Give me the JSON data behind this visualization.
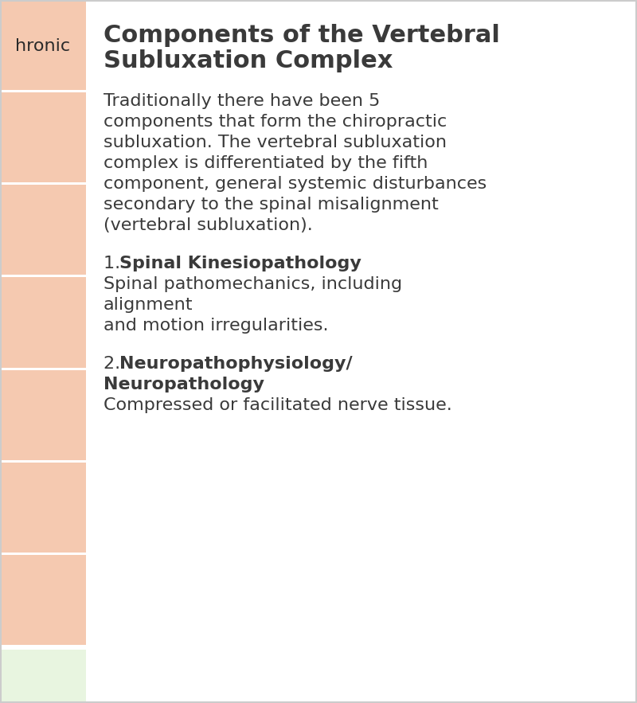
{
  "title_line1": "Components of the Vertebral",
  "title_line2": "Subluxation Complex",
  "background_color": "#ffffff",
  "sidebar_color": "#f5c9b0",
  "sidebar_bottom_color": "#e8f5e0",
  "border_color": "#cccccc",
  "text_color": "#3a3a3a",
  "sidebar_text": "hronic",
  "sidebar_text_color": "#2a2a2a",
  "sidebar_text_size": 16,
  "title_fontsize": 22,
  "body_fontsize": 16,
  "item_fontsize": 16,
  "intro_text": "Traditionally there have been 5\ncomponents that form the chiropractic\nsubluxation. The vertebral subluxation\ncomplex is differentiated by the fifth\ncomponent, general systemic disturbances\nsecondary to the spinal misalignment\n(vertebral subluxation).",
  "item1_number": "1. ",
  "item1_bold": "Spinal Kinesiopathology",
  "item1_normal": "Spinal pathomechanics, including\nalignment\nand motion irregularities.",
  "item2_number": "2. ",
  "item2_bold": "Neuropathophysiology/\nNeuropathology",
  "item2_normal": "Compressed or facilitated nerve tissue."
}
